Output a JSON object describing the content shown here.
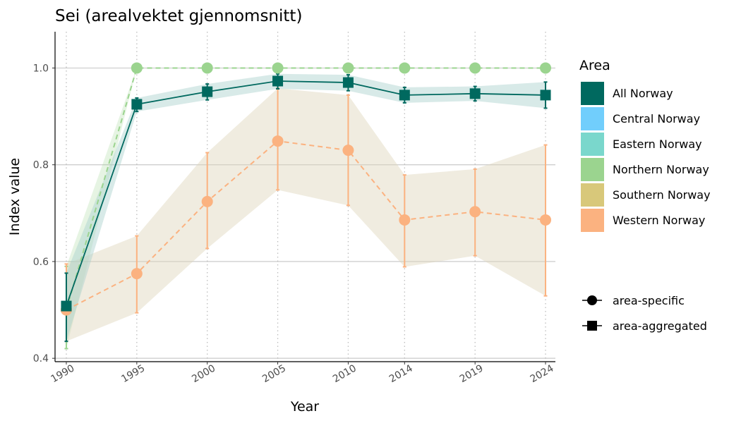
{
  "chart_data": {
    "type": "line",
    "title": "Sei (arealvektet gjennomsnitt)",
    "xlabel": "Year",
    "ylabel": "Index value",
    "x": [
      1990,
      1995,
      2000,
      2005,
      2010,
      2014,
      2019,
      2024
    ],
    "xlim": [
      1989.2,
      2024.7
    ],
    "ylim": [
      0.393,
      1.075
    ],
    "yticks": [
      0.4,
      0.6,
      0.8,
      1.0
    ],
    "ytick_labels": [
      "0.4",
      "0.6",
      "0.8",
      "1.0"
    ],
    "grid": "horizontal major gridlines; dotted vertical lines at each year",
    "legend_title": "Area",
    "legend_position": "right",
    "legend_areas": [
      {
        "label": "All Norway",
        "color": "#00695f"
      },
      {
        "label": "Central Norway",
        "color": "#71cefc"
      },
      {
        "label": "Eastern Norway",
        "color": "#7ad7cc"
      },
      {
        "label": "Northern Norway",
        "color": "#9bd48f"
      },
      {
        "label": "Southern Norway",
        "color": "#d8c87a"
      },
      {
        "label": "Western Norway",
        "color": "#fbb280"
      }
    ],
    "shape_legend": [
      {
        "label": "area-specific",
        "shape": "circle"
      },
      {
        "label": "area-aggregated",
        "shape": "square"
      }
    ],
    "series": [
      {
        "name": "Northern Norway",
        "type": "area-specific",
        "color": "#9bd48f",
        "values": [
          0.5,
          1.0,
          1.0,
          1.0,
          1.0,
          1.0,
          1.0,
          1.0
        ],
        "lower": [
          0.42,
          1.0,
          1.0,
          1.0,
          1.0,
          1.0,
          1.0,
          1.0
        ],
        "upper": [
          0.59,
          1.0,
          1.0,
          1.0,
          1.0,
          1.0,
          1.0,
          1.0
        ]
      },
      {
        "name": "Western Norway",
        "type": "area-specific",
        "color": "#fbb280",
        "band_color": "#ddd5bb",
        "values": [
          0.5,
          0.575,
          0.724,
          0.849,
          0.83,
          0.686,
          0.703,
          0.686
        ],
        "lower": [
          0.435,
          0.494,
          0.627,
          0.748,
          0.716,
          0.589,
          0.612,
          0.529
        ],
        "upper": [
          0.595,
          0.653,
          0.825,
          0.958,
          0.944,
          0.779,
          0.791,
          0.841
        ]
      },
      {
        "name": "All Norway",
        "type": "area-aggregated",
        "color": "#00695f",
        "band_color": "#a8d0cc",
        "values": [
          0.508,
          0.925,
          0.951,
          0.973,
          0.97,
          0.944,
          0.947,
          0.944
        ],
        "lower": [
          0.435,
          0.91,
          0.934,
          0.957,
          0.953,
          0.928,
          0.932,
          0.917
        ],
        "upper": [
          0.576,
          0.938,
          0.967,
          0.988,
          0.986,
          0.96,
          0.962,
          0.971
        ]
      }
    ]
  }
}
